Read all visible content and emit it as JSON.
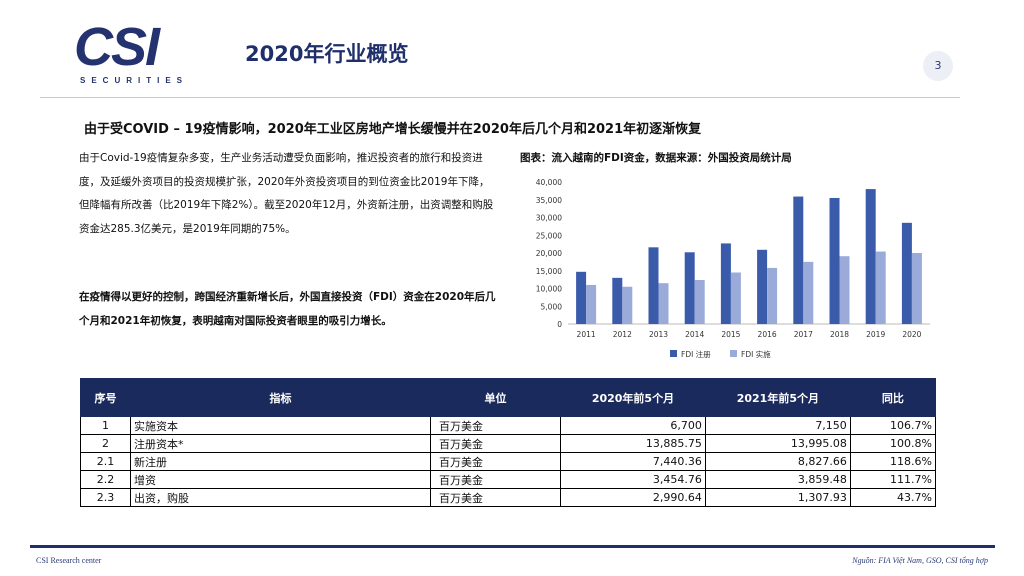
{
  "logo": {
    "main": "CSI",
    "sub": "SECURITIES"
  },
  "page_title": "2020年行业概览",
  "page_number": "3",
  "subtitle": "由于受COVID – 19疫情影响，2020年工业区房地产增长缓慢并在2020年后几个月和2021年初逐渐恢复",
  "para1": "由于Covid-19疫情复杂多变，生产业务活动遭受负面影响，推迟投资者的旅行和投资进度，及延缓外资项目的投资规模扩张，2020年外资投资项目的到位资金比2019年下降，但降幅有所改善（比2019年下降2%）。截至2020年12月，外资新注册，出资调整和购股资金达285.3亿美元，是2019年同期的75%。",
  "para2": "在疫情得以更好的控制，跨国经济重新增长后，外国直接投资（FDI）资金在2020年后几个月和2021年初恢复，表明越南对国际投资者眼里的吸引力增长。",
  "chart_title": "图表：流入越南的FDI资金，数据来源：外国投资局统计局",
  "chart_data": {
    "type": "bar",
    "categories": [
      "2011",
      "2012",
      "2013",
      "2014",
      "2015",
      "2016",
      "2017",
      "2018",
      "2019",
      "2020"
    ],
    "series": [
      {
        "name": "FDI 注册",
        "color": "#3a5aaa",
        "values": [
          14700,
          13000,
          21600,
          20200,
          22700,
          20900,
          35900,
          35500,
          38000,
          28500
        ]
      },
      {
        "name": "FDI 实施",
        "color": "#9aabd9",
        "values": [
          11000,
          10500,
          11500,
          12400,
          14500,
          15800,
          17500,
          19100,
          20400,
          20000
        ]
      }
    ],
    "ylim": [
      0,
      40000
    ],
    "yticks": [
      "0",
      "5,000",
      "10,000",
      "15,000",
      "20,000",
      "25,000",
      "30,000",
      "35,000",
      "40,000"
    ],
    "grid": false,
    "legend": "bottom"
  },
  "table": {
    "headers": [
      "序号",
      "指标",
      "单位",
      "2020年前5个月",
      "2021年前5个月",
      "同比"
    ],
    "rows": [
      [
        "1",
        "实施资本",
        "百万美金",
        "6,700",
        "7,150",
        "106.7%"
      ],
      [
        "2",
        "注册资本*",
        "百万美金",
        "13,885.75",
        "13,995.08",
        "100.8%"
      ],
      [
        "2.1",
        "新注册",
        "百万美金",
        "7,440.36",
        "8,827.66",
        "118.6%"
      ],
      [
        "2.2",
        "增资",
        "百万美金",
        "3,454.76",
        "3,859.48",
        "111.7%"
      ],
      [
        "2.3",
        "出资，购股",
        "百万美金",
        "2,990.64",
        "1,307.93",
        "43.7%"
      ]
    ]
  },
  "footer": {
    "left": "CSI Research center",
    "right": "Nguồn: FIA Việt Nam, GSO, CSI tổng hợp"
  }
}
